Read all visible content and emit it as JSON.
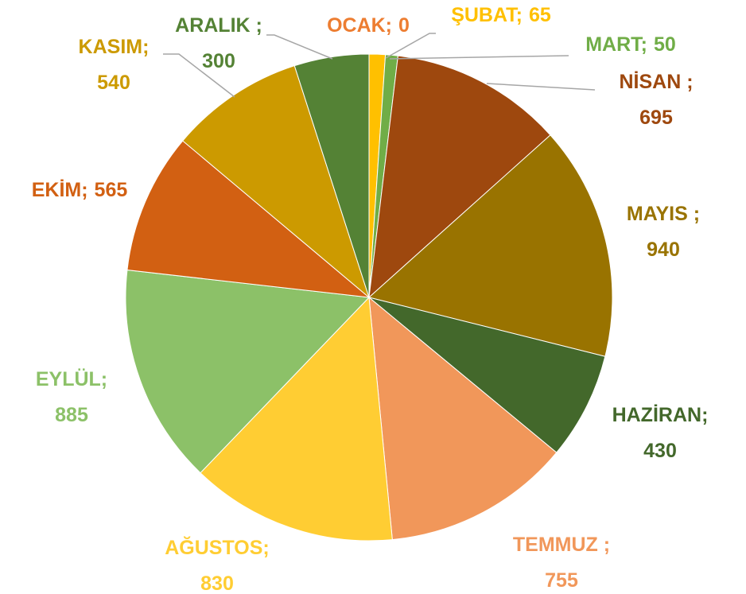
{
  "chart_data": {
    "type": "pie",
    "categories": [
      "OCAK;",
      "ŞUBAT;",
      "MART;",
      "NİSAN ;",
      "MAYIS ;",
      "HAZİRAN;",
      "TEMMUZ ;",
      "AĞUSTOS;",
      "EYLÜL;",
      "EKİM;",
      "KASIM;",
      "ARALIK ;"
    ],
    "values": [
      0,
      65,
      50,
      695,
      940,
      430,
      755,
      830,
      885,
      565,
      540,
      300
    ],
    "colors": [
      "#ED7D31",
      "#FFC000",
      "#70AD47",
      "#9E480E",
      "#997300",
      "#43682B",
      "#F1975A",
      "#FFCD33",
      "#8CC168",
      "#D26012",
      "#CC9A00",
      "#548235"
    ]
  }
}
